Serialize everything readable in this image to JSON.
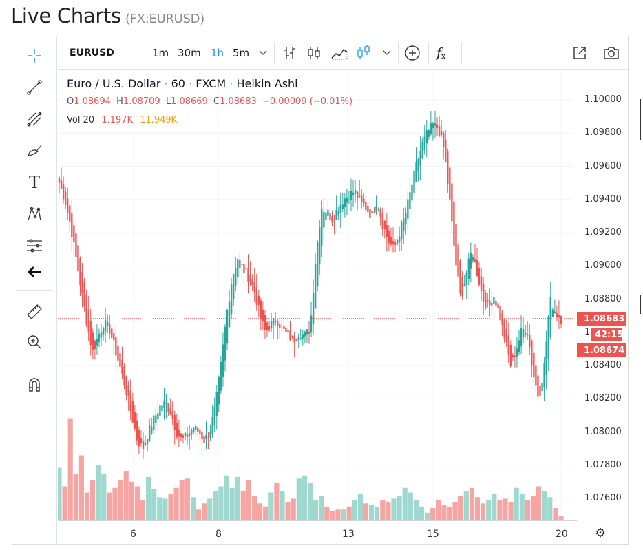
{
  "page": {
    "title": "Live Charts",
    "symbol_label": "(FX:EURUSD)"
  },
  "toolbar": {
    "symbol": "EURUSD",
    "intervals": [
      "1m",
      "30m",
      "1h",
      "5m"
    ],
    "active_interval": "1h"
  },
  "legend": {
    "name": "Euro / U.S. Dollar",
    "interval": "60",
    "source": "FXCM",
    "style": "Heikin Ashi",
    "ohlc": {
      "o_key": "O",
      "o": "1.08694",
      "h_key": "H",
      "h": "1.08709",
      "l_key": "L",
      "l": "1.08669",
      "c_key": "C",
      "c": "1.08683",
      "change": "−0.00009 (−0.01%)"
    },
    "volume": {
      "label": "Vol 20",
      "v1": "1.197K",
      "v2": "11.949K"
    }
  },
  "price_tags": {
    "last": "1.08683",
    "countdown": "42:15",
    "other": "1.08674"
  },
  "colors": {
    "up": "#26a69a",
    "down": "#ef5350",
    "vol_up": "#9ed8cf",
    "vol_down": "#f6a5a3",
    "accent": "#2196f3",
    "ma": "#ff9800"
  },
  "chart_data": {
    "type": "candlestick",
    "ylim": [
      1.0745,
      1.1025
    ],
    "y_ticks": [
      "1.10000",
      "1.09800",
      "1.09600",
      "1.09400",
      "1.09200",
      "1.09000",
      "1.08800",
      "1.08600",
      "1.08400",
      "1.08200",
      "1.08000",
      "1.07800",
      "1.07600"
    ],
    "x_tick_labels": [
      "6",
      "8",
      "13",
      "15",
      "20"
    ],
    "last_price": 1.08683,
    "price_path": [
      1.095,
      1.094,
      1.0925,
      1.0905,
      1.0885,
      1.0865,
      1.0848,
      1.0858,
      1.0866,
      1.0862,
      1.085,
      1.0838,
      1.0825,
      1.081,
      1.0795,
      1.079,
      1.08,
      1.0808,
      1.0815,
      1.0818,
      1.0812,
      1.08,
      1.0795,
      1.0798,
      1.0803,
      1.08,
      1.0795,
      1.08,
      1.0815,
      1.084,
      1.087,
      1.0893,
      1.0905,
      1.0898,
      1.0893,
      1.0885,
      1.087,
      1.086,
      1.0865,
      1.0868,
      1.0862,
      1.0858,
      1.0855,
      1.086,
      1.0858,
      1.0862,
      1.0905,
      1.0935,
      1.0933,
      1.0928,
      1.0935,
      1.094,
      1.0943,
      1.0945,
      1.0938,
      1.0935,
      1.093,
      1.094,
      1.0925,
      1.0915,
      1.091,
      1.092,
      1.093,
      1.0945,
      1.096,
      1.0972,
      1.098,
      1.0985,
      1.0983,
      1.097,
      1.094,
      1.0905,
      1.088,
      1.0895,
      1.091,
      1.0895,
      1.088,
      1.0875,
      1.0882,
      1.087,
      1.0855,
      1.084,
      1.085,
      1.0862,
      1.086,
      1.0835,
      1.082,
      1.084,
      1.088,
      1.0872,
      1.0868
    ],
    "volume": {
      "ylim": [
        0,
        4000
      ],
      "series": [
        {
          "name": "vol_20",
          "values": [
            1700,
            1100,
            3300,
            1500,
            2100,
            900,
            1300,
            1800,
            1500,
            900,
            1050,
            1300,
            1600,
            1250,
            1100,
            650,
            1400,
            1000,
            750,
            700,
            850,
            1050,
            1300,
            1350,
            750,
            350,
            550,
            700,
            950,
            1100,
            1450,
            1050,
            1400,
            950,
            1300,
            800,
            550,
            450,
            900,
            1200,
            950,
            600,
            700,
            1350,
            1450,
            1200,
            650,
            800,
            450,
            300,
            350,
            350,
            450,
            650,
            850,
            550,
            500,
            450,
            650,
            600,
            700,
            800,
            1050,
            900,
            650,
            450,
            250,
            400,
            650,
            500,
            450,
            600,
            800,
            950,
            1050,
            750,
            550,
            650,
            850,
            650,
            700,
            600,
            1050,
            850,
            650,
            800,
            1100,
            950,
            750,
            400,
            150
          ]
        }
      ]
    },
    "ma_line": "none"
  },
  "icons": [
    "crosshair-icon",
    "trend-line-icon",
    "fib-icon",
    "brush-icon",
    "text-icon",
    "pattern-icon",
    "measure-icon",
    "back-arrow-icon",
    "ruler-icon",
    "zoom-in-icon",
    "magnet-icon",
    "popout-icon",
    "camera-icon",
    "gear-icon"
  ]
}
